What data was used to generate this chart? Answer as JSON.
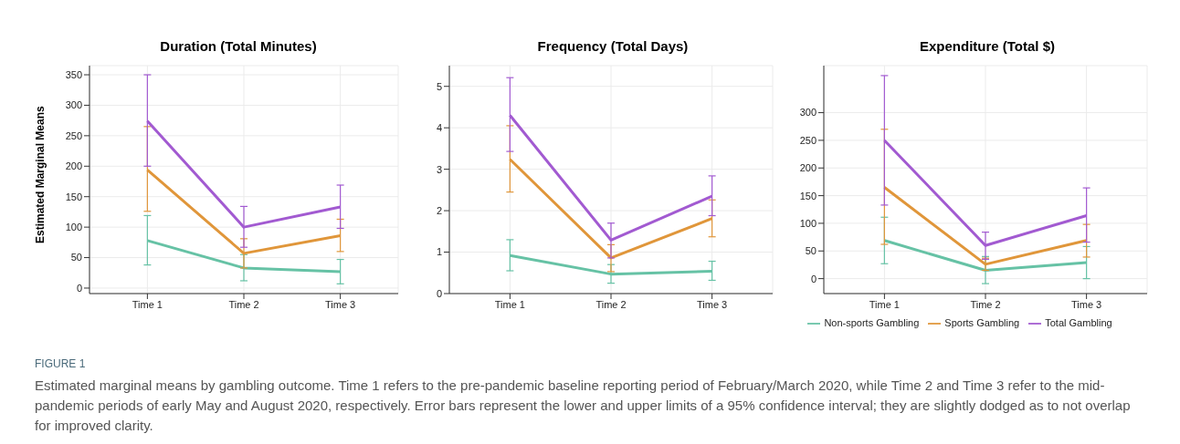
{
  "chart_data": [
    {
      "type": "line",
      "title": "Duration (Total Minutes)",
      "ylabel": "Estimated Marginal Means",
      "categories": [
        "Time 1",
        "Time 2",
        "Time 3"
      ],
      "ylim": [
        -9,
        365
      ],
      "yticks": [
        0,
        50,
        100,
        150,
        200,
        250,
        300,
        350
      ],
      "grid": true,
      "legend": false,
      "series": [
        {
          "color": "#66c2a5",
          "values": [
            78,
            33,
            27
          ],
          "errors": [
            [
              38,
              119
            ],
            [
              12,
              55
            ],
            [
              7,
              47
            ]
          ]
        },
        {
          "color": "#e0963a",
          "values": [
            194,
            57,
            86
          ],
          "errors": [
            [
              126,
              265
            ],
            [
              33,
              81
            ],
            [
              60,
              113
            ]
          ]
        },
        {
          "color": "#a25ad1",
          "values": [
            274,
            100,
            133
          ],
          "errors": [
            [
              200,
              350
            ],
            [
              67,
              134
            ],
            [
              98,
              169
            ]
          ]
        }
      ]
    },
    {
      "type": "line",
      "title": "Frequency (Total Days)",
      "categories": [
        "Time 1",
        "Time 2",
        "Time 3"
      ],
      "ylim": [
        0,
        5.5
      ],
      "yticks": [
        0,
        1,
        2,
        3,
        4,
        5
      ],
      "grid": true,
      "legend": false,
      "series": [
        {
          "color": "#66c2a5",
          "values": [
            0.92,
            0.47,
            0.54
          ],
          "errors": [
            [
              0.55,
              1.3
            ],
            [
              0.25,
              0.7
            ],
            [
              0.32,
              0.78
            ]
          ]
        },
        {
          "color": "#e0963a",
          "values": [
            3.24,
            0.86,
            1.81
          ],
          "errors": [
            [
              2.45,
              4.05
            ],
            [
              0.53,
              1.18
            ],
            [
              1.37,
              2.26
            ]
          ]
        },
        {
          "color": "#a25ad1",
          "values": [
            4.3,
            1.29,
            2.35
          ],
          "errors": [
            [
              3.43,
              5.21
            ],
            [
              0.86,
              1.7
            ],
            [
              1.88,
              2.84
            ]
          ]
        }
      ]
    },
    {
      "type": "line",
      "title": "Expenditure (Total $)",
      "categories": [
        "Time 1",
        "Time 2",
        "Time 3"
      ],
      "ylim": [
        -27,
        385
      ],
      "yticks": [
        0,
        50,
        100,
        150,
        200,
        250,
        300
      ],
      "grid": true,
      "legend": "bottom",
      "series": [
        {
          "name": "Non-sports Gambling",
          "color": "#66c2a5",
          "values": [
            69,
            15,
            29
          ],
          "errors": [
            [
              27,
              111
            ],
            [
              -9,
              40
            ],
            [
              0,
              58
            ]
          ]
        },
        {
          "name": "Sports Gambling",
          "color": "#e0963a",
          "values": [
            165,
            26,
            69
          ],
          "errors": [
            [
              62,
              270
            ],
            [
              15,
              37
            ],
            [
              39,
              98
            ]
          ]
        },
        {
          "name": "Total Gambling",
          "color": "#a25ad1",
          "values": [
            250,
            60,
            114
          ],
          "errors": [
            [
              133,
              367
            ],
            [
              35,
              84
            ],
            [
              66,
              164
            ]
          ]
        }
      ],
      "annotations": [
        "FIGURE 1",
        "Estimated marginal means by gambling outcome. Time 1 refers to the pre-pandemic baseline reporting period of February/March 2020, while Time 2 and Time 3 refer to the mid-pandemic periods of early May and August 2020, respectively. Error bars represent the lower and upper limits of a 95% confidence interval; they are slightly dodged as to not overlap for improved clarity."
      ]
    }
  ]
}
